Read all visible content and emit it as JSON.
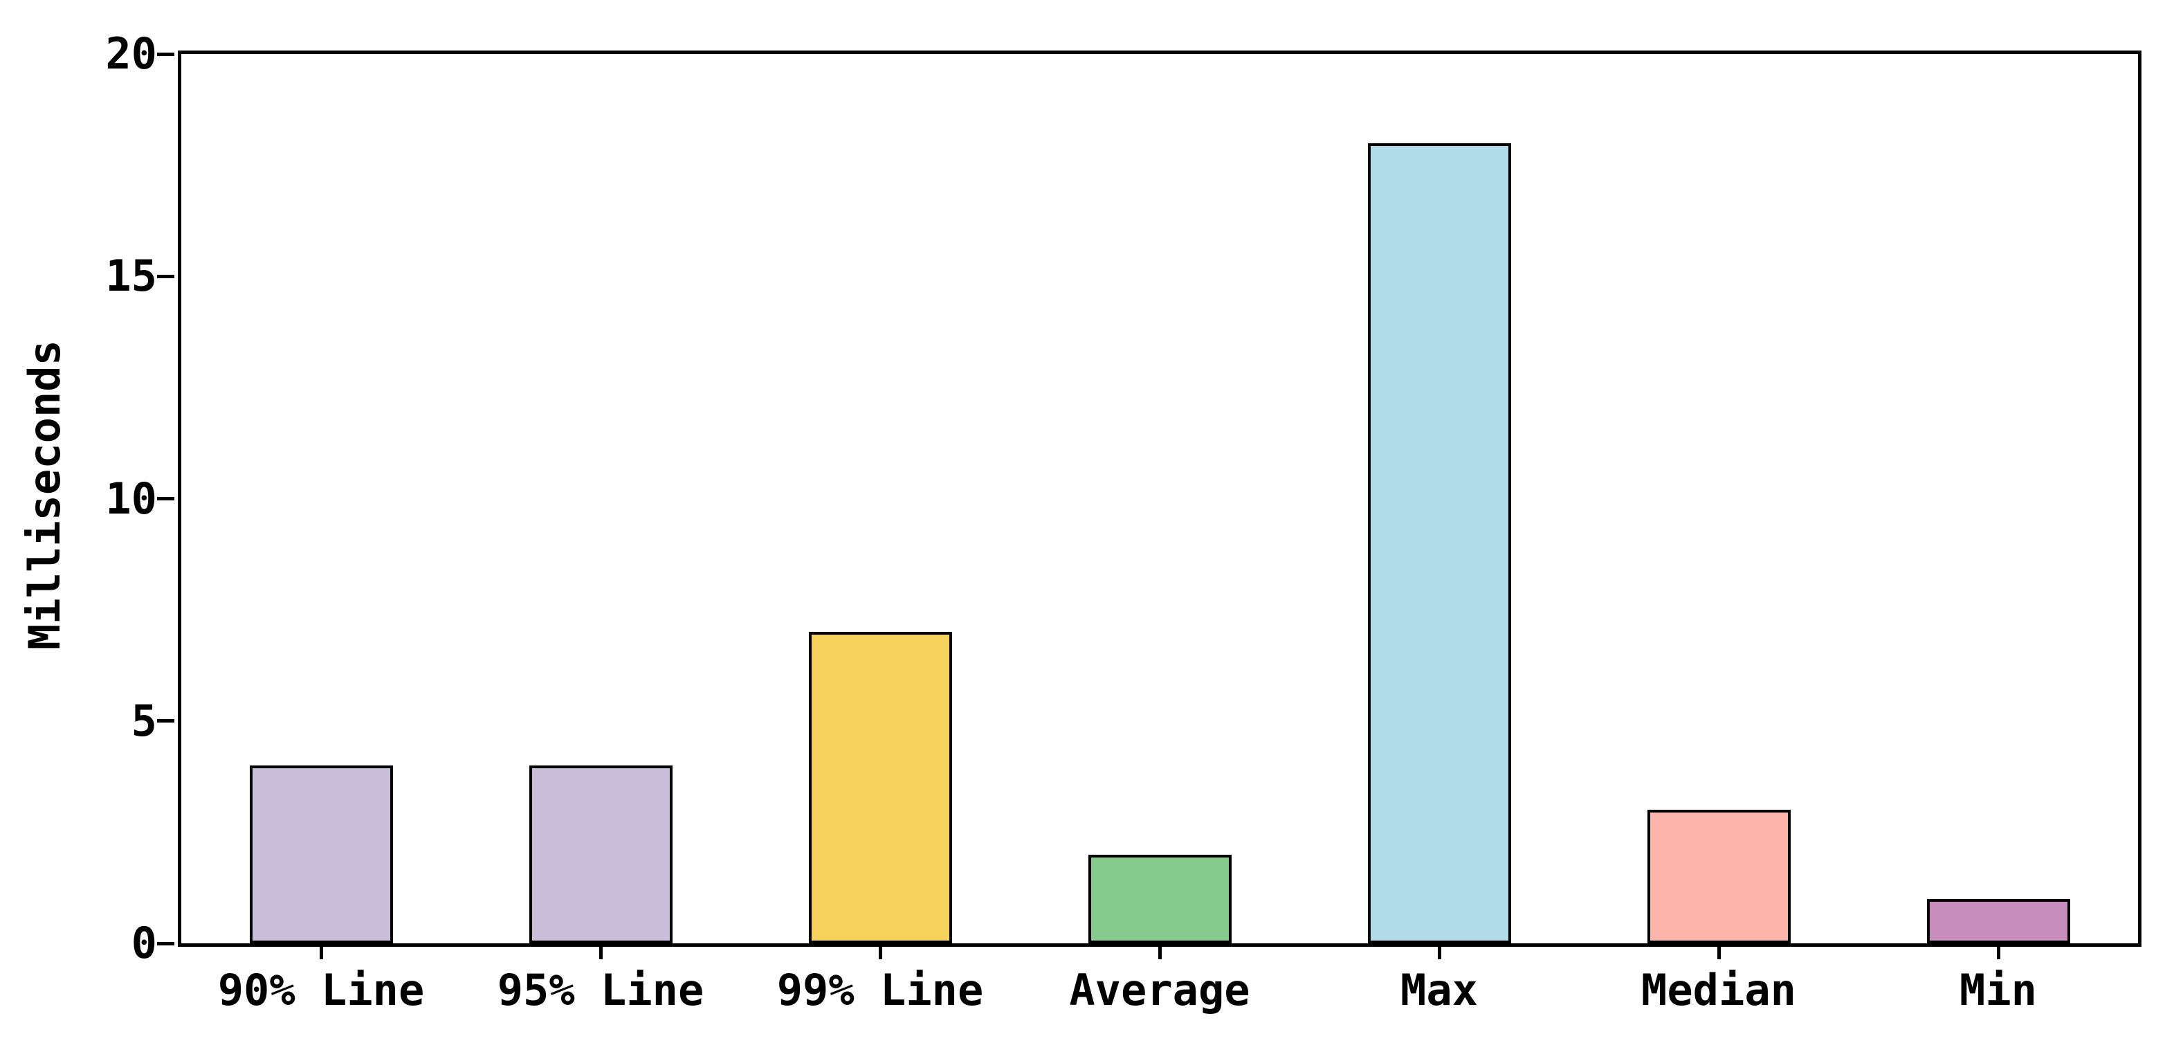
{
  "chart_data": {
    "type": "bar",
    "title": "",
    "xlabel": "",
    "ylabel": "Milliseconds",
    "categories": [
      "90% Line",
      "95% Line",
      "99% Line",
      "Average",
      "Max",
      "Median",
      "Min"
    ],
    "values": [
      4,
      4,
      7,
      2,
      18,
      3,
      1
    ],
    "bar_colors": [
      "#CABFDB",
      "#CABFDB",
      "#F6D15C",
      "#86CA8D",
      "#B2DBEA",
      "#FBB5AA",
      "#C78EBD"
    ],
    "bar_edge_color": "#000000",
    "ylim": [
      0,
      20
    ],
    "yticks": [
      0,
      5,
      10,
      15,
      20
    ],
    "grid": false,
    "legend": "none",
    "axis_color": "#000000",
    "background_color": "#ffffff"
  }
}
